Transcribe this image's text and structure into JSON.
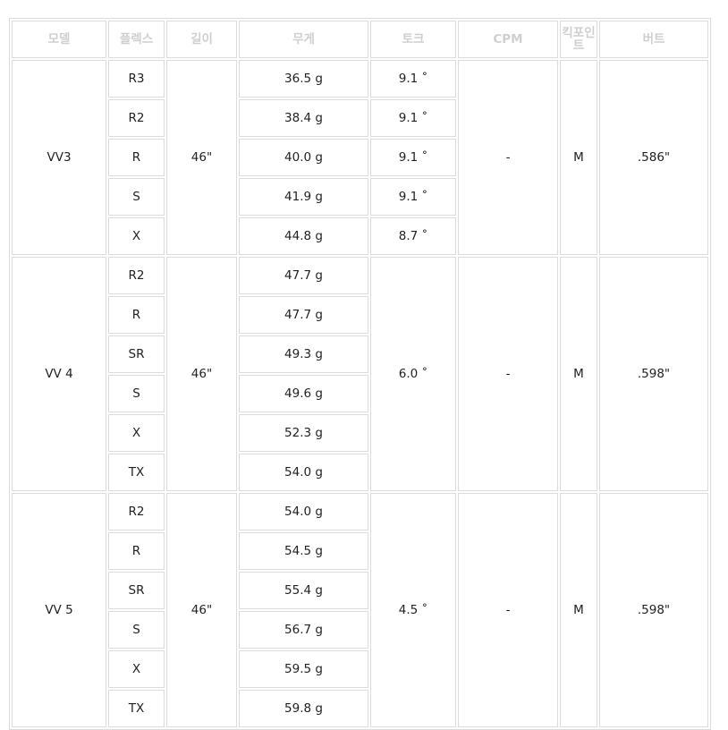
{
  "headers": [
    "모델",
    "플렉스",
    "길이",
    "무게",
    "토크",
    "CPM",
    "킥포인트",
    "버트"
  ],
  "models": [
    {
      "name": "VV3",
      "length": "46\"",
      "cpm": "-",
      "kickpoint": "M",
      "butt": ".586\"",
      "torque_per_flex": true,
      "rows": [
        {
          "flex": "R3",
          "weight": "36.5 g",
          "torque": "9.1 ˚"
        },
        {
          "flex": "R2",
          "weight": "38.4 g",
          "torque": "9.1 ˚"
        },
        {
          "flex": "R",
          "weight": "40.0 g",
          "torque": "9.1 ˚"
        },
        {
          "flex": "S",
          "weight": "41.9 g",
          "torque": "9.1 ˚"
        },
        {
          "flex": "X",
          "weight": "44.8 g",
          "torque": "8.7 ˚"
        }
      ]
    },
    {
      "name": "VV 4",
      "length": "46\"",
      "cpm": "-",
      "kickpoint": "M",
      "butt": ".598\"",
      "torque": "6.0 ˚",
      "torque_per_flex": false,
      "rows": [
        {
          "flex": "R2",
          "weight": "47.7 g"
        },
        {
          "flex": "R",
          "weight": "47.7 g"
        },
        {
          "flex": "SR",
          "weight": "49.3 g"
        },
        {
          "flex": "S",
          "weight": "49.6 g"
        },
        {
          "flex": "X",
          "weight": "52.3 g"
        },
        {
          "flex": "TX",
          "weight": "54.0 g"
        }
      ]
    },
    {
      "name": "VV 5",
      "length": "46\"",
      "cpm": "-",
      "kickpoint": "M",
      "butt": ".598\"",
      "torque": "4.5 ˚",
      "torque_per_flex": false,
      "rows": [
        {
          "flex": "R2",
          "weight": "54.0 g"
        },
        {
          "flex": "R",
          "weight": "54.5 g"
        },
        {
          "flex": "SR",
          "weight": "55.4 g"
        },
        {
          "flex": "S",
          "weight": "56.7 g"
        },
        {
          "flex": "X",
          "weight": "59.5 g"
        },
        {
          "flex": "TX",
          "weight": "59.8 g"
        }
      ]
    }
  ]
}
